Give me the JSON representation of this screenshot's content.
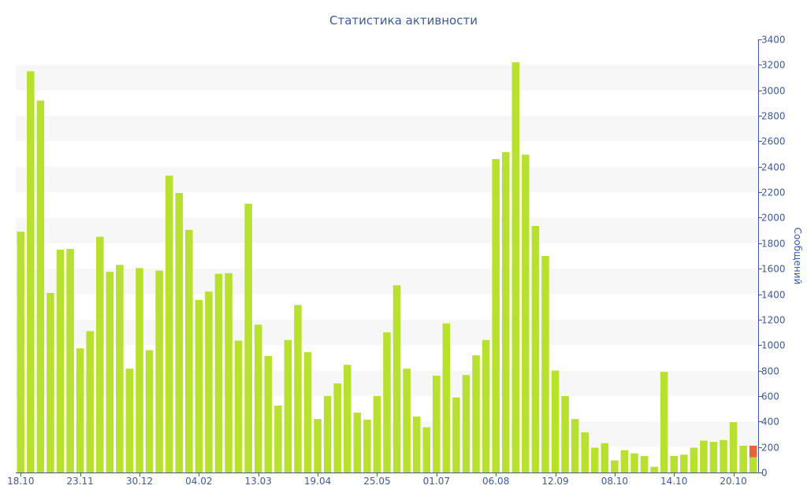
{
  "chart_data": {
    "type": "bar",
    "title": "Статистика активности",
    "ylabel": "Сообщений",
    "xlabel": "",
    "ylim": [
      0,
      3400
    ],
    "y_ticks": [
      0,
      200,
      400,
      600,
      800,
      1000,
      1200,
      1400,
      1600,
      1800,
      2000,
      2200,
      2400,
      2600,
      2800,
      3000,
      3200,
      3400
    ],
    "x_tick_labels": [
      {
        "index": 0,
        "label": "18.10"
      },
      {
        "index": 6,
        "label": "23.11"
      },
      {
        "index": 12,
        "label": "30.12"
      },
      {
        "index": 18,
        "label": "04.02"
      },
      {
        "index": 24,
        "label": "13.03"
      },
      {
        "index": 30,
        "label": "19.04"
      },
      {
        "index": 36,
        "label": "25.05"
      },
      {
        "index": 42,
        "label": "01.07"
      },
      {
        "index": 48,
        "label": "06.08"
      },
      {
        "index": 54,
        "label": "12.09"
      },
      {
        "index": 60,
        "label": "08.10"
      },
      {
        "index": 66,
        "label": "14.10"
      },
      {
        "index": 72,
        "label": "20.10"
      }
    ],
    "grid": true,
    "series": [
      {
        "color": "#b8e02e",
        "values": [
          1890,
          3150,
          2920,
          1410,
          1750,
          1755,
          975,
          1110,
          1850,
          1575,
          1630,
          815,
          1605,
          960,
          1585,
          2330,
          2195,
          1905,
          1355,
          1420,
          1560,
          1565,
          1035,
          2110,
          1160,
          915,
          525,
          1040,
          1315,
          945,
          420,
          600,
          700,
          845,
          470,
          415,
          600,
          1100,
          1470,
          815,
          440,
          355,
          760,
          1170,
          590,
          765,
          920,
          1040,
          2460,
          2515,
          3220,
          2495,
          1935,
          1700,
          800,
          600,
          420,
          315,
          195,
          230,
          95,
          175,
          150,
          130,
          45,
          790,
          130,
          140,
          195,
          250,
          240,
          255,
          395,
          210,
          120
        ]
      },
      {
        "color": "#e8623a",
        "values": [
          0,
          0,
          0,
          0,
          0,
          0,
          0,
          0,
          0,
          0,
          0,
          0,
          0,
          0,
          0,
          0,
          0,
          0,
          0,
          0,
          0,
          0,
          0,
          0,
          0,
          0,
          0,
          0,
          0,
          0,
          0,
          0,
          0,
          0,
          0,
          0,
          0,
          0,
          0,
          0,
          0,
          0,
          0,
          0,
          0,
          0,
          0,
          0,
          0,
          0,
          0,
          0,
          0,
          0,
          0,
          0,
          0,
          0,
          0,
          0,
          0,
          0,
          0,
          0,
          0,
          0,
          0,
          0,
          0,
          0,
          0,
          0,
          0,
          0,
          90
        ]
      }
    ],
    "stacked": true,
    "band_color": "#f7f7f7",
    "axis_color": "#3d5a99"
  }
}
